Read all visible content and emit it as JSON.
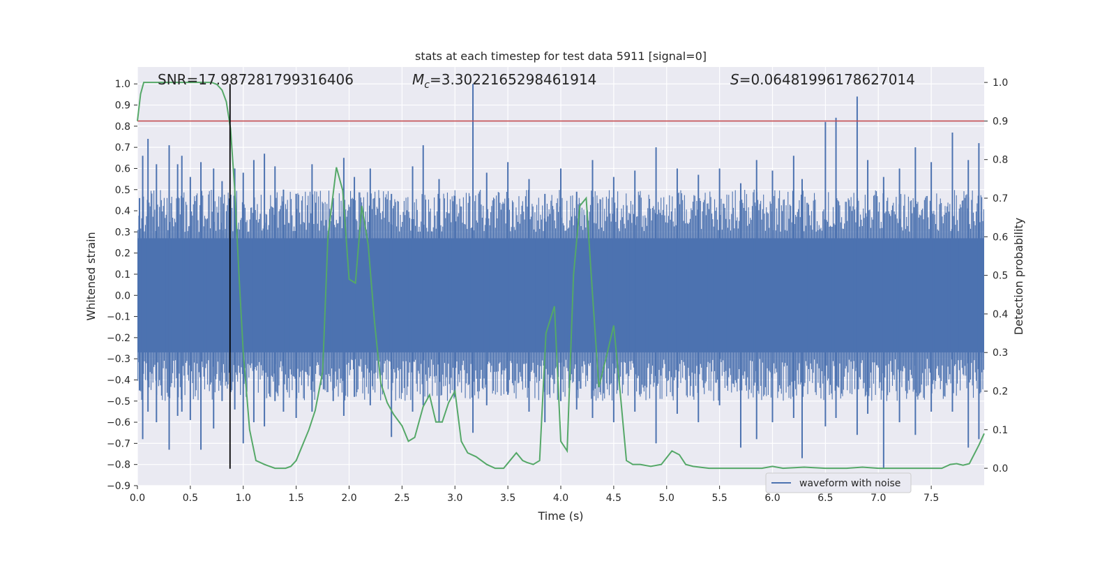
{
  "chart_data": {
    "type": "line",
    "title": "stats at each timestep for test data 5911 [signal=0]",
    "xlabel": "Time (s)",
    "ylabel": "Whitened strain",
    "ylabel_right": "Detection probability",
    "xlim": [
      0.0,
      8.0
    ],
    "ylim": [
      -0.9,
      1.08
    ],
    "ylim_right": [
      -0.045,
      1.04
    ],
    "xticks": [
      0.0,
      0.5,
      1.0,
      1.5,
      2.0,
      2.5,
      3.0,
      3.5,
      4.0,
      4.5,
      5.0,
      5.5,
      6.0,
      6.5,
      7.0,
      7.5
    ],
    "xtick_labels": [
      "0.0",
      "0.5",
      "1.0",
      "1.5",
      "2.0",
      "2.5",
      "3.0",
      "3.5",
      "4.0",
      "4.5",
      "5.0",
      "5.5",
      "6.0",
      "6.5",
      "7.0",
      "7.5"
    ],
    "yticks": [
      -0.9,
      -0.8,
      -0.7,
      -0.6,
      -0.5,
      -0.4,
      -0.3,
      -0.2,
      -0.1,
      0.0,
      0.1,
      0.2,
      0.3,
      0.4,
      0.5,
      0.6,
      0.7,
      0.8,
      0.9,
      1.0
    ],
    "ytick_labels": [
      "−0.9",
      "−0.8",
      "−0.7",
      "−0.6",
      "−0.5",
      "−0.4",
      "−0.3",
      "−0.2",
      "−0.1",
      "0.0",
      "0.1",
      "0.2",
      "0.3",
      "0.4",
      "0.5",
      "0.6",
      "0.7",
      "0.8",
      "0.9",
      "1.0"
    ],
    "yticks_right": [
      0.0,
      0.1,
      0.2,
      0.3,
      0.4,
      0.5,
      0.6,
      0.7,
      0.8,
      0.9,
      1.0
    ],
    "ytick_labels_right": [
      "0.0",
      "0.1",
      "0.2",
      "0.3",
      "0.4",
      "0.5",
      "0.6",
      "0.7",
      "0.8",
      "0.9",
      "1.0"
    ],
    "annotations": {
      "snr": "SNR=17.987281799316406",
      "mc_symbol": "M",
      "mc_sub": "c",
      "mc_value": "=3.3022165298461914",
      "s_symbol": "S",
      "s_value": "=0.06481996178627014"
    },
    "threshold_right": 0.9,
    "vline_x": 0.875,
    "vline_yrange": [
      -0.82,
      1.0
    ],
    "series": [
      {
        "name": "waveform with noise",
        "axis": "left",
        "color": "#4c72b0",
        "band_level": 0.27,
        "spikes": [
          {
            "x": 0.02,
            "top": 0.46,
            "bottom": -0.45
          },
          {
            "x": 0.05,
            "top": 0.66,
            "bottom": -0.68
          },
          {
            "x": 0.1,
            "top": 0.74,
            "bottom": -0.55
          },
          {
            "x": 0.18,
            "top": 0.62,
            "bottom": -0.6
          },
          {
            "x": 0.3,
            "top": 0.71,
            "bottom": -0.73
          },
          {
            "x": 0.38,
            "top": 0.62,
            "bottom": -0.57
          },
          {
            "x": 0.42,
            "top": 0.66,
            "bottom": -0.55
          },
          {
            "x": 0.5,
            "top": 0.56,
            "bottom": -0.59
          },
          {
            "x": 0.6,
            "top": 0.63,
            "bottom": -0.73
          },
          {
            "x": 0.72,
            "top": 0.6,
            "bottom": -0.63
          },
          {
            "x": 0.8,
            "top": 0.54,
            "bottom": -0.5
          },
          {
            "x": 0.92,
            "top": 0.6,
            "bottom": -0.54
          },
          {
            "x": 1.0,
            "top": 0.58,
            "bottom": -0.7
          },
          {
            "x": 1.1,
            "top": 0.64,
            "bottom": -0.6
          },
          {
            "x": 1.2,
            "top": 0.67,
            "bottom": -0.62
          },
          {
            "x": 1.3,
            "top": 0.61,
            "bottom": -0.5
          },
          {
            "x": 1.38,
            "top": 0.5,
            "bottom": -0.55
          },
          {
            "x": 1.5,
            "top": 0.48,
            "bottom": -0.58
          },
          {
            "x": 1.65,
            "top": 0.62,
            "bottom": -0.55
          },
          {
            "x": 1.85,
            "top": 0.46,
            "bottom": -0.5
          },
          {
            "x": 1.95,
            "top": 0.65,
            "bottom": -0.57
          },
          {
            "x": 2.05,
            "top": 0.56,
            "bottom": -0.48
          },
          {
            "x": 2.2,
            "top": 0.6,
            "bottom": -0.52
          },
          {
            "x": 2.4,
            "top": 0.48,
            "bottom": -0.67
          },
          {
            "x": 2.6,
            "top": 0.61,
            "bottom": -0.55
          },
          {
            "x": 2.7,
            "top": 0.71,
            "bottom": -0.52
          },
          {
            "x": 2.85,
            "top": 0.55,
            "bottom": -0.6
          },
          {
            "x": 3.0,
            "top": 0.47,
            "bottom": -0.48
          },
          {
            "x": 3.17,
            "top": 1.0,
            "bottom": -0.65
          },
          {
            "x": 3.3,
            "top": 0.58,
            "bottom": -0.52
          },
          {
            "x": 3.5,
            "top": 0.63,
            "bottom": -0.47
          },
          {
            "x": 3.7,
            "top": 0.55,
            "bottom": -0.55
          },
          {
            "x": 3.85,
            "top": 0.48,
            "bottom": -0.6
          },
          {
            "x": 4.0,
            "top": 0.6,
            "bottom": -0.5
          },
          {
            "x": 4.15,
            "top": 0.49,
            "bottom": -0.54
          },
          {
            "x": 4.3,
            "top": 0.64,
            "bottom": -0.58
          },
          {
            "x": 4.5,
            "top": 0.56,
            "bottom": -0.6
          },
          {
            "x": 4.7,
            "top": 0.59,
            "bottom": -0.55
          },
          {
            "x": 4.9,
            "top": 0.7,
            "bottom": -0.7
          },
          {
            "x": 5.1,
            "top": 0.6,
            "bottom": -0.56
          },
          {
            "x": 5.3,
            "top": 0.57,
            "bottom": -0.6
          },
          {
            "x": 5.5,
            "top": 0.6,
            "bottom": -0.52
          },
          {
            "x": 5.7,
            "top": 0.53,
            "bottom": -0.72
          },
          {
            "x": 5.85,
            "top": 0.64,
            "bottom": -0.68
          },
          {
            "x": 6.0,
            "top": 0.59,
            "bottom": -0.6
          },
          {
            "x": 6.2,
            "top": 0.66,
            "bottom": -0.58
          },
          {
            "x": 6.28,
            "top": 0.55,
            "bottom": -0.77
          },
          {
            "x": 6.5,
            "top": 0.82,
            "bottom": -0.62
          },
          {
            "x": 6.6,
            "top": 0.84,
            "bottom": -0.58
          },
          {
            "x": 6.8,
            "top": 0.94,
            "bottom": -0.66
          },
          {
            "x": 6.9,
            "top": 0.64,
            "bottom": -0.56
          },
          {
            "x": 7.05,
            "top": 0.56,
            "bottom": -0.82
          },
          {
            "x": 7.2,
            "top": 0.6,
            "bottom": -0.6
          },
          {
            "x": 7.35,
            "top": 0.7,
            "bottom": -0.66
          },
          {
            "x": 7.5,
            "top": 0.63,
            "bottom": -0.55
          },
          {
            "x": 7.7,
            "top": 0.77,
            "bottom": -0.55
          },
          {
            "x": 7.85,
            "top": 0.64,
            "bottom": -0.72
          },
          {
            "x": 7.95,
            "top": 0.72,
            "bottom": -0.68
          }
        ]
      },
      {
        "name": "",
        "axis": "right",
        "color": "#55a868",
        "x": [
          0.0,
          0.03,
          0.06,
          0.12,
          0.2,
          0.3,
          0.45,
          0.6,
          0.7,
          0.75,
          0.8,
          0.84,
          0.88,
          0.92,
          0.96,
          1.0,
          1.06,
          1.12,
          1.2,
          1.3,
          1.4,
          1.45,
          1.5,
          1.56,
          1.62,
          1.68,
          1.75,
          1.8,
          1.88,
          1.94,
          2.0,
          2.06,
          2.12,
          2.18,
          2.24,
          2.3,
          2.36,
          2.42,
          2.5,
          2.56,
          2.62,
          2.7,
          2.76,
          2.82,
          2.88,
          2.94,
          3.0,
          3.06,
          3.12,
          3.2,
          3.3,
          3.38,
          3.46,
          3.52,
          3.58,
          3.64,
          3.68,
          3.74,
          3.8,
          3.86,
          3.94,
          4.0,
          4.06,
          4.12,
          4.18,
          4.24,
          4.3,
          4.36,
          4.44,
          4.5,
          4.56,
          4.62,
          4.68,
          4.75,
          4.85,
          4.95,
          5.05,
          5.12,
          5.18,
          5.25,
          5.4,
          5.6,
          5.9,
          6.0,
          6.1,
          6.3,
          6.5,
          6.7,
          6.85,
          7.0,
          7.2,
          7.4,
          7.6,
          7.68,
          7.74,
          7.8,
          7.86,
          7.95,
          8.0
        ],
        "y": [
          0.9,
          0.97,
          1.0,
          1.0,
          1.0,
          1.0,
          1.0,
          1.0,
          1.0,
          0.995,
          0.98,
          0.95,
          0.88,
          0.72,
          0.5,
          0.3,
          0.1,
          0.02,
          0.01,
          0.0,
          0.0,
          0.005,
          0.02,
          0.06,
          0.1,
          0.15,
          0.25,
          0.6,
          0.78,
          0.72,
          0.49,
          0.48,
          0.68,
          0.58,
          0.38,
          0.22,
          0.17,
          0.14,
          0.11,
          0.07,
          0.08,
          0.16,
          0.19,
          0.12,
          0.12,
          0.17,
          0.2,
          0.07,
          0.04,
          0.03,
          0.01,
          0.0,
          0.0,
          0.02,
          0.04,
          0.02,
          0.015,
          0.01,
          0.02,
          0.35,
          0.42,
          0.07,
          0.045,
          0.5,
          0.68,
          0.7,
          0.45,
          0.21,
          0.3,
          0.37,
          0.2,
          0.02,
          0.01,
          0.01,
          0.005,
          0.01,
          0.045,
          0.035,
          0.01,
          0.005,
          0.0,
          0.0,
          0.0,
          0.005,
          0.0,
          0.003,
          0.0,
          0.0,
          0.003,
          0.0,
          0.0,
          0.0,
          0.0,
          0.01,
          0.012,
          0.008,
          0.012,
          0.06,
          0.09
        ]
      }
    ],
    "legend": {
      "position": "lower center",
      "entries": [
        "waveform with noise"
      ]
    }
  },
  "colors": {
    "plot_background": "#eaeaf2",
    "grid": "#ffffff",
    "threshold": "#c44e52",
    "vline": "#000000",
    "waveform": "#4c72b0",
    "probability": "#55a868"
  }
}
